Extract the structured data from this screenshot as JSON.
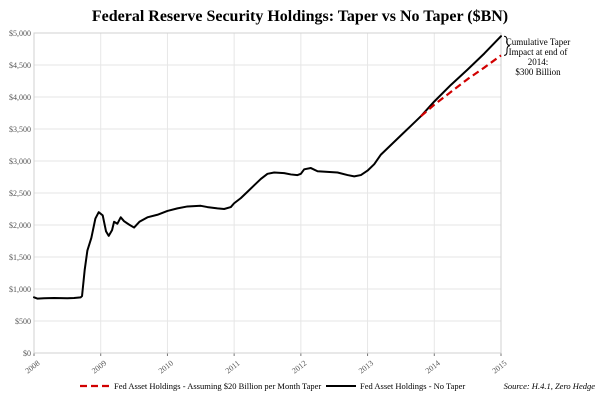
{
  "chart_data": {
    "type": "line",
    "title": "Federal Reserve Security Holdings: Taper vs No Taper ($BN)",
    "xlabel": "",
    "ylabel": "",
    "xlim": [
      2008,
      2015
    ],
    "ylim": [
      0,
      5000
    ],
    "y_ticks": [
      0,
      500,
      1000,
      1500,
      2000,
      2500,
      3000,
      3500,
      4000,
      4500,
      5000
    ],
    "y_tick_labels": [
      "$0",
      "$500",
      "$1,000",
      "$1,500",
      "$2,000",
      "$2,500",
      "$3,000",
      "$3,500",
      "$4,000",
      "$4,500",
      "$5,000"
    ],
    "x_ticks": [
      2008,
      2009,
      2010,
      2011,
      2012,
      2013,
      2014,
      2015
    ],
    "x_tick_labels": [
      "2008",
      "2009",
      "2010",
      "2011",
      "2012",
      "2013",
      "2014",
      "2015"
    ],
    "grid": true,
    "series": [
      {
        "name": "Fed Asset Holdings - No Taper",
        "color": "#000000",
        "style": "solid",
        "points": [
          [
            2008.0,
            870
          ],
          [
            2008.05,
            850
          ],
          [
            2008.15,
            855
          ],
          [
            2008.3,
            860
          ],
          [
            2008.5,
            855
          ],
          [
            2008.6,
            860
          ],
          [
            2008.7,
            870
          ],
          [
            2008.72,
            890
          ],
          [
            2008.76,
            1300
          ],
          [
            2008.8,
            1600
          ],
          [
            2008.86,
            1800
          ],
          [
            2008.92,
            2100
          ],
          [
            2008.97,
            2200
          ],
          [
            2009.03,
            2150
          ],
          [
            2009.08,
            1900
          ],
          [
            2009.12,
            1830
          ],
          [
            2009.17,
            1920
          ],
          [
            2009.2,
            2050
          ],
          [
            2009.25,
            2020
          ],
          [
            2009.3,
            2120
          ],
          [
            2009.35,
            2060
          ],
          [
            2009.42,
            2010
          ],
          [
            2009.5,
            1960
          ],
          [
            2009.58,
            2050
          ],
          [
            2009.7,
            2120
          ],
          [
            2009.85,
            2160
          ],
          [
            2010.0,
            2220
          ],
          [
            2010.15,
            2260
          ],
          [
            2010.3,
            2290
          ],
          [
            2010.5,
            2300
          ],
          [
            2010.6,
            2280
          ],
          [
            2010.75,
            2260
          ],
          [
            2010.85,
            2250
          ],
          [
            2010.95,
            2280
          ],
          [
            2011.0,
            2340
          ],
          [
            2011.1,
            2420
          ],
          [
            2011.2,
            2520
          ],
          [
            2011.3,
            2620
          ],
          [
            2011.4,
            2720
          ],
          [
            2011.5,
            2800
          ],
          [
            2011.6,
            2820
          ],
          [
            2011.75,
            2810
          ],
          [
            2011.85,
            2790
          ],
          [
            2011.95,
            2780
          ],
          [
            2012.0,
            2800
          ],
          [
            2012.05,
            2870
          ],
          [
            2012.15,
            2890
          ],
          [
            2012.25,
            2840
          ],
          [
            2012.4,
            2830
          ],
          [
            2012.55,
            2820
          ],
          [
            2012.7,
            2780
          ],
          [
            2012.8,
            2760
          ],
          [
            2012.9,
            2780
          ],
          [
            2013.0,
            2850
          ],
          [
            2013.1,
            2950
          ],
          [
            2013.2,
            3100
          ],
          [
            2013.35,
            3250
          ],
          [
            2013.5,
            3400
          ],
          [
            2013.65,
            3550
          ],
          [
            2013.8,
            3700
          ],
          [
            2014.0,
            3930
          ],
          [
            2014.25,
            4190
          ],
          [
            2014.5,
            4430
          ],
          [
            2014.75,
            4680
          ],
          [
            2015.0,
            4950
          ]
        ]
      },
      {
        "name": "Fed Asset Holdings - Assuming $20 Billion per Month Taper",
        "color": "#d10000",
        "style": "dashed",
        "points": [
          [
            2013.8,
            3700
          ],
          [
            2014.0,
            3880
          ],
          [
            2014.25,
            4080
          ],
          [
            2014.5,
            4280
          ],
          [
            2014.75,
            4460
          ],
          [
            2015.0,
            4650
          ]
        ]
      }
    ],
    "legend": {
      "placement": "bottom",
      "entries": [
        "Fed Asset Holdings - Assuming $20 Billion per Month Taper",
        "Fed Asset Holdings - No Taper"
      ]
    },
    "annotations": [
      {
        "lines": [
          "Cumulative Taper",
          "Impact at end of",
          "2014:",
          "$300 Billion"
        ]
      }
    ],
    "source": "Source: H.4.1, Zero Hedge"
  }
}
